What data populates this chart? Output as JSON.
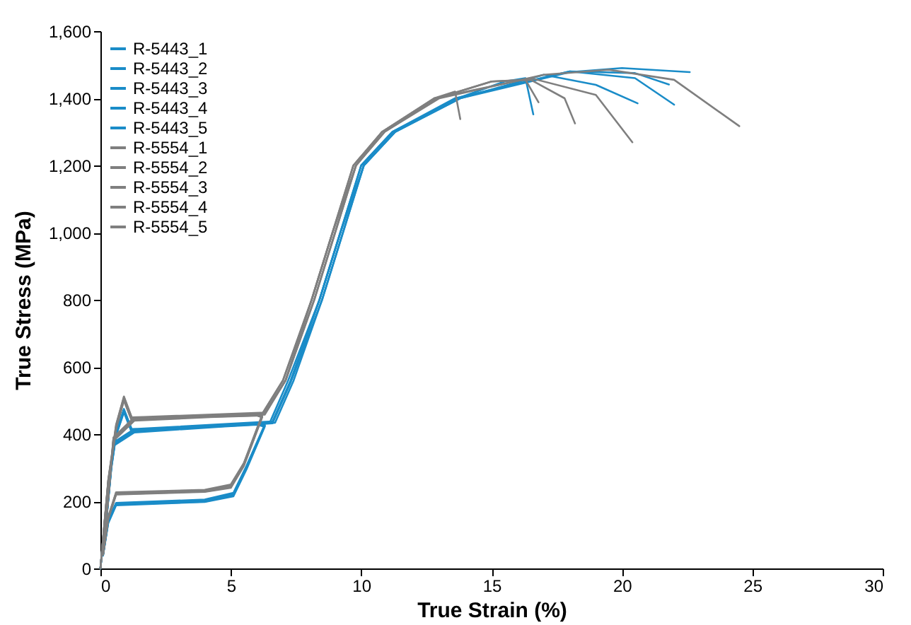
{
  "chart_data": {
    "type": "line",
    "xlabel": "True Strain (%)",
    "ylabel": "True Stress (MPa)",
    "xlim": [
      0,
      30
    ],
    "ylim": [
      0,
      1600
    ],
    "xticks": [
      0,
      5,
      10,
      15,
      20,
      25,
      30
    ],
    "yticks": [
      0,
      200,
      400,
      600,
      800,
      {
        "value": 1000,
        "label": "1,000"
      },
      {
        "value": 1200,
        "label": "1,200"
      },
      {
        "value": 1400,
        "label": "1,400"
      },
      {
        "value": 1600,
        "label": "1,600"
      }
    ],
    "grid": false,
    "legend": "top left",
    "marker": "none",
    "line_style": "solid",
    "series": [
      {
        "name": "R-5443_1",
        "color": "#1a8cc8",
        "x": [
          0,
          0.3,
          0.6,
          0.9,
          1.2,
          3,
          6,
          6.3,
          5.6,
          5.1,
          4,
          0.6,
          0.3,
          0.1,
          0.5,
          1.3,
          6.5,
          7.2,
          8.4,
          9.2,
          10,
          11.2,
          13.7,
          15.5,
          16.3,
          16.6
        ],
        "values": [
          0,
          240,
          400,
          470,
          410,
          418,
          430,
          425,
          300,
          220,
          200,
          192,
          140,
          40,
          370,
          410,
          435,
          560,
          800,
          1000,
          1200,
          1300,
          1400,
          1450,
          1460,
          1352
        ]
      },
      {
        "name": "R-5443_2",
        "color": "#1a8cc8",
        "x": [
          0,
          0.3,
          0.6,
          0.9,
          1.2,
          3,
          6,
          6.3,
          5.6,
          5.1,
          4,
          0.6,
          0.3,
          0.1,
          0.5,
          1.3,
          6.6,
          7.3,
          8.5,
          9.3,
          10.1,
          11.3,
          13.8,
          17,
          19,
          20.6
        ],
        "values": [
          0,
          235,
          395,
          465,
          405,
          415,
          428,
          422,
          295,
          215,
          198,
          188,
          135,
          38,
          365,
          405,
          432,
          555,
          800,
          1000,
          1200,
          1300,
          1400,
          1470,
          1440,
          1385
        ]
      },
      {
        "name": "R-5443_3",
        "color": "#1a8cc8",
        "x": [
          0,
          0.3,
          0.6,
          0.9,
          1.2,
          3,
          6,
          6.3,
          5.6,
          5.1,
          4,
          0.6,
          0.3,
          0.1,
          0.5,
          1.3,
          6.6,
          7.3,
          8.4,
          9.2,
          10,
          11.2,
          13.6,
          18,
          20.5,
          22
        ],
        "values": [
          0,
          245,
          405,
          475,
          415,
          420,
          432,
          428,
          305,
          225,
          205,
          195,
          145,
          42,
          375,
          415,
          438,
          560,
          800,
          1000,
          1200,
          1300,
          1400,
          1480,
          1460,
          1381
        ]
      },
      {
        "name": "R-5443_4",
        "color": "#1a8cc8",
        "x": [
          0,
          0.3,
          0.6,
          0.9,
          1.2,
          3,
          6,
          6.3,
          5.6,
          5.1,
          4,
          0.6,
          0.3,
          0.1,
          0.5,
          1.3,
          6.7,
          7.4,
          8.5,
          9.3,
          10.1,
          11.3,
          13.7,
          18,
          20.5,
          21.8
        ],
        "values": [
          0,
          238,
          398,
          468,
          408,
          416,
          429,
          424,
          298,
          218,
          199,
          190,
          138,
          40,
          368,
          408,
          434,
          558,
          800,
          1000,
          1200,
          1300,
          1400,
          1480,
          1475,
          1441
        ]
      },
      {
        "name": "R-5443_5",
        "color": "#1a8cc8",
        "x": [
          0,
          0.3,
          0.6,
          0.9,
          1.2,
          3,
          6,
          6.3,
          5.6,
          5.1,
          4,
          0.6,
          0.3,
          0.1,
          0.5,
          1.3,
          6.6,
          7.3,
          8.4,
          9.2,
          10.1,
          11.3,
          13.8,
          18,
          20,
          22.6
        ],
        "values": [
          0,
          242,
          402,
          472,
          412,
          419,
          431,
          426,
          302,
          222,
          202,
          193,
          142,
          41,
          372,
          412,
          436,
          560,
          800,
          1000,
          1200,
          1300,
          1400,
          1478,
          1490,
          1478
        ]
      },
      {
        "name": "R-5554_1",
        "color": "#7f7f7f",
        "x": [
          0,
          0.3,
          0.6,
          0.9,
          1.2,
          3,
          6,
          6.2,
          5.5,
          5,
          4,
          0.6,
          0.3,
          0.1,
          0.5,
          1.3,
          6.2,
          7,
          8.1,
          8.9,
          9.7,
          10.8,
          12.8,
          13.6,
          13.8
        ],
        "values": [
          0,
          260,
          420,
          505,
          445,
          450,
          458,
          452,
          310,
          245,
          230,
          222,
          150,
          42,
          385,
          445,
          460,
          560,
          800,
          1000,
          1200,
          1300,
          1400,
          1420,
          1338
        ]
      },
      {
        "name": "R-5554_2",
        "color": "#7f7f7f",
        "x": [
          0,
          0.3,
          0.6,
          0.9,
          1.2,
          3,
          6,
          6.2,
          5.5,
          5,
          4,
          0.6,
          0.3,
          0.1,
          0.5,
          1.3,
          6.3,
          7.1,
          8.1,
          8.9,
          9.8,
          10.8,
          12.9,
          15,
          16.3,
          16.8
        ],
        "values": [
          0,
          255,
          415,
          500,
          440,
          448,
          455,
          450,
          305,
          240,
          228,
          220,
          148,
          40,
          380,
          440,
          458,
          560,
          800,
          1000,
          1200,
          1300,
          1400,
          1450,
          1455,
          1388
        ]
      },
      {
        "name": "R-5554_3",
        "color": "#7f7f7f",
        "x": [
          0,
          0.3,
          0.6,
          0.9,
          1.2,
          3,
          6,
          6.2,
          5.5,
          5,
          4,
          0.6,
          0.3,
          0.1,
          0.5,
          1.3,
          6.3,
          7.1,
          8.2,
          9,
          9.8,
          10.9,
          12.9,
          15,
          16.5,
          17.8,
          18.2
        ],
        "values": [
          0,
          262,
          425,
          510,
          448,
          452,
          460,
          455,
          312,
          248,
          232,
          225,
          152,
          44,
          388,
          448,
          462,
          560,
          800,
          1000,
          1200,
          1300,
          1400,
          1450,
          1455,
          1400,
          1325
        ]
      },
      {
        "name": "R-5554_4",
        "color": "#7f7f7f",
        "x": [
          0,
          0.3,
          0.6,
          0.9,
          1.2,
          3,
          6,
          6.2,
          5.5,
          5,
          4,
          0.6,
          0.3,
          0.1,
          0.5,
          1.3,
          6.2,
          7,
          8.1,
          8.9,
          9.7,
          10.8,
          12.8,
          16.5,
          19,
          20.4
        ],
        "values": [
          0,
          258,
          418,
          502,
          442,
          449,
          456,
          451,
          308,
          242,
          229,
          221,
          149,
          41,
          382,
          442,
          459,
          560,
          800,
          1000,
          1200,
          1300,
          1400,
          1460,
          1410,
          1269
        ]
      },
      {
        "name": "R-5554_5",
        "color": "#7f7f7f",
        "x": [
          0,
          0.3,
          0.6,
          0.9,
          1.2,
          3,
          6,
          6.2,
          5.5,
          5,
          4,
          0.6,
          0.3,
          0.1,
          0.5,
          1.3,
          6.3,
          7.1,
          8.2,
          9,
          9.8,
          10.9,
          13,
          17,
          19.5,
          22,
          24.5
        ],
        "values": [
          0,
          264,
          428,
          512,
          450,
          454,
          462,
          457,
          314,
          250,
          234,
          227,
          154,
          45,
          390,
          450,
          464,
          560,
          800,
          1000,
          1200,
          1300,
          1400,
          1470,
          1485,
          1455,
          1317
        ]
      }
    ]
  }
}
